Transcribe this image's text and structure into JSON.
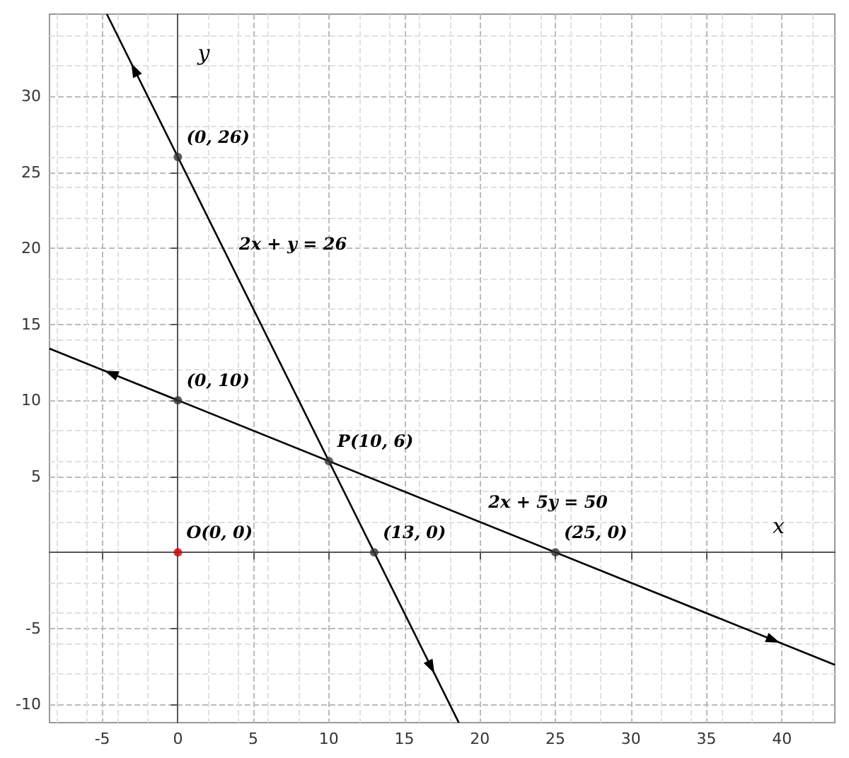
{
  "chart_data": {
    "type": "line",
    "xlabel": "x",
    "ylabel": "y",
    "xlim": [
      -8.5,
      43.5
    ],
    "ylim": [
      -11.2,
      35.4
    ],
    "xticks": [
      -5,
      0,
      5,
      10,
      15,
      20,
      25,
      30,
      35,
      40
    ],
    "yticks": [
      -10,
      -5,
      5,
      10,
      15,
      20,
      25,
      30
    ],
    "grid": true,
    "line_style": "solid",
    "series": [
      {
        "color": "#000000",
        "marker": "none",
        "x": [
          -4.7,
          18.6
        ],
        "values": [
          35.4,
          -11.2
        ]
      },
      {
        "color": "#000000",
        "marker": "none",
        "x": [
          -8.5,
          43.5
        ],
        "values": [
          13.4,
          -7.4
        ]
      },
      {
        "type": "scatter",
        "marker": "circle",
        "x": [
          0,
          0,
          10,
          13,
          25,
          0
        ],
        "values": [
          26,
          10,
          6,
          0,
          0,
          0
        ],
        "colors": [
          "#333333",
          "#333333",
          "#333333",
          "#333333",
          "#333333",
          "#cc0000"
        ]
      }
    ],
    "annotations": [
      {
        "text": "(0, 26)",
        "x": 0,
        "y": 26
      },
      {
        "text": "(0, 10)",
        "x": 0,
        "y": 10
      },
      {
        "text": "P(10, 6)",
        "x": 10,
        "y": 6
      },
      {
        "text": "(13, 0)",
        "x": 13,
        "y": 0
      },
      {
        "text": "(25, 0)",
        "x": 25,
        "y": 0
      },
      {
        "text": "O(0, 0)",
        "x": 0,
        "y": 0
      },
      {
        "text": "2x + y = 26",
        "x": 3.5,
        "y": 19
      },
      {
        "text": "2x + 5y = 50",
        "x": 20,
        "y": 2
      }
    ]
  }
}
